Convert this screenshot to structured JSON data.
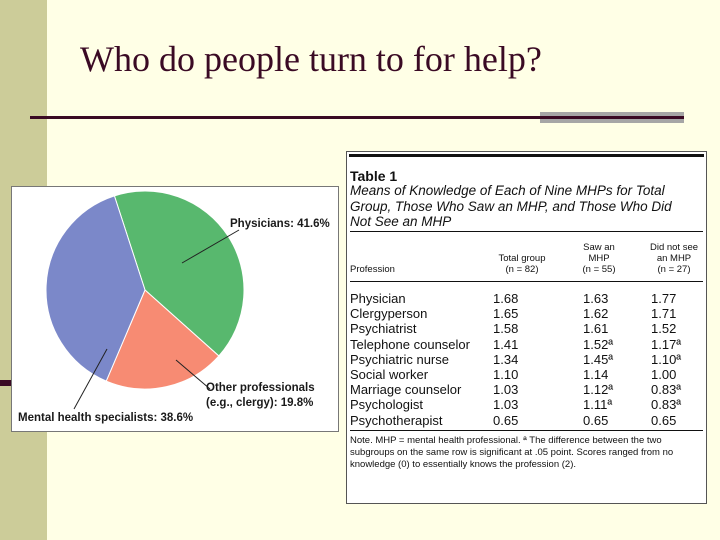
{
  "slide": {
    "title": "Who do people turn to for help?"
  },
  "pie": {
    "slices": [
      {
        "label": "Physicians: 41.6%",
        "value": 41.6,
        "color": "#58b86e"
      },
      {
        "label": "Other professionals (e.g., clergy): 19.8%",
        "line1": "Other professionals",
        "line2": "(e.g., clergy): 19.8%",
        "value": 19.8,
        "color": "#f78b73"
      },
      {
        "label": "Mental health specialists: 38.6%",
        "value": 38.6,
        "color": "#7b88c9"
      }
    ]
  },
  "table": {
    "label": "Table 1",
    "caption": "Means of Knowledge of Each of Nine MHPs for Total Group, Those Who Saw an MHP, and Those Who Did Not See an MHP",
    "headers": {
      "profession": "Profession",
      "total_1": "Total group",
      "total_2": "(n = 82)",
      "saw_1": "Saw an",
      "saw_2": "MHP",
      "saw_3": "(n = 55)",
      "not_1": "Did not see",
      "not_2": "an MHP",
      "not_3": "(n = 27)"
    },
    "rows": [
      {
        "profession": "Physician",
        "total": "1.68",
        "saw": "1.63",
        "not": "1.77"
      },
      {
        "profession": "Clergyperson",
        "total": "1.65",
        "saw": "1.62",
        "not": "1.71"
      },
      {
        "profession": "Psychiatrist",
        "total": "1.58",
        "saw": "1.61",
        "not": "1.52"
      },
      {
        "profession": "Telephone counselor",
        "total": "1.41",
        "saw": "1.52ª",
        "not": "1.17ª"
      },
      {
        "profession": "Psychiatric nurse",
        "total": "1.34",
        "saw": "1.45ª",
        "not": "1.10ª"
      },
      {
        "profession": "Social worker",
        "total": "1.10",
        "saw": "1.14",
        "not": "1.00"
      },
      {
        "profession": "Marriage counselor",
        "total": "1.03",
        "saw": "1.12ª",
        "not": "0.83ª"
      },
      {
        "profession": "Psychologist",
        "total": "1.03",
        "saw": "1.11ª",
        "not": "0.83ª"
      },
      {
        "profession": "Psychotherapist",
        "total": "0.65",
        "saw": "0.65",
        "not": "0.65"
      }
    ],
    "note": "Note. MHP = mental health professional. ª The difference between the two subgroups on the same row is significant at .05 point. Scores ranged from no knowledge (0) to essentially knows the profession (2)."
  }
}
